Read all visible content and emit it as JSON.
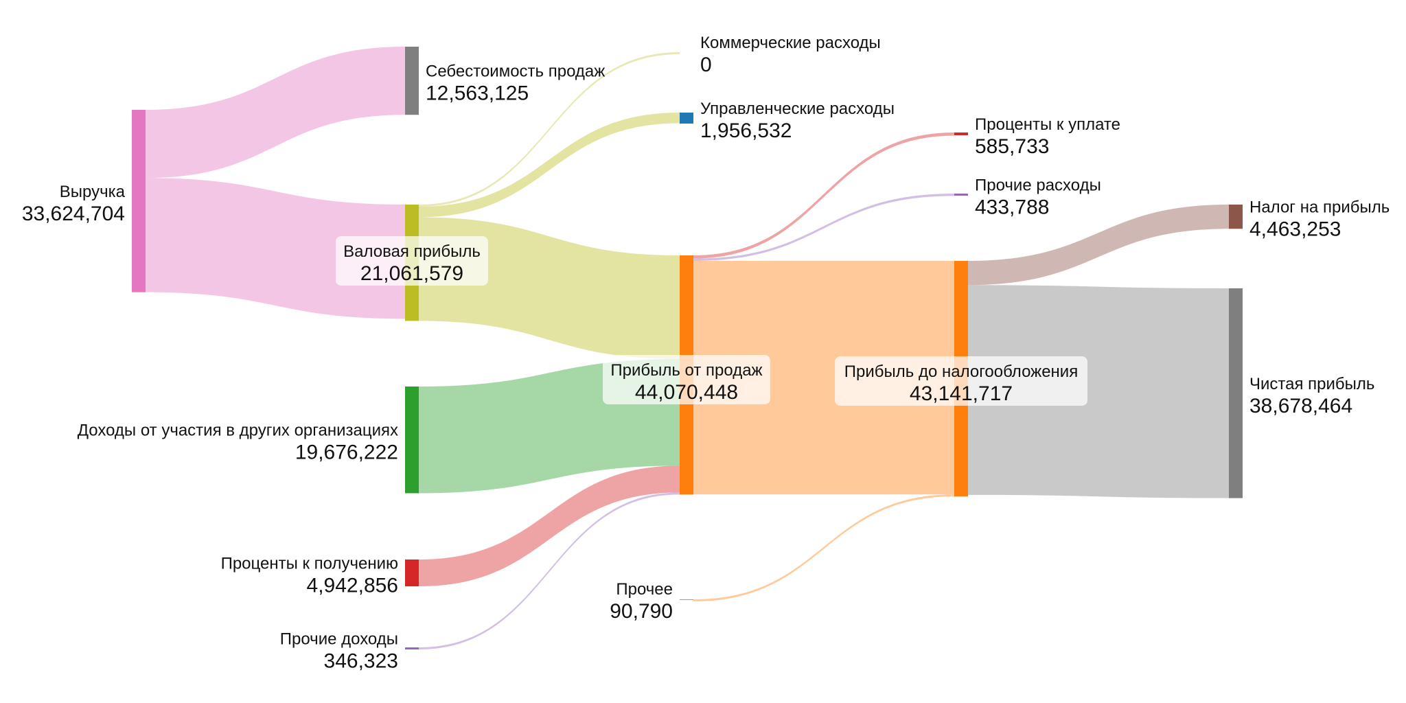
{
  "chart_data": {
    "type": "sankey",
    "nodes": [
      {
        "id": "revenue",
        "name": "Выручка",
        "value": "33,624,704",
        "color": "#e377c2"
      },
      {
        "id": "cogs",
        "name": "Себестоимость продаж",
        "value": "12,563,125",
        "color": "#7f7f7f"
      },
      {
        "id": "gross",
        "name": "Валовая прибыль",
        "value": "21,061,579",
        "color": "#bcbd22"
      },
      {
        "id": "participation",
        "name": "Доходы от участия в других организациях",
        "value": "19,676,222",
        "color": "#2ca02c"
      },
      {
        "id": "int_income",
        "name": "Проценты к получению",
        "value": "4,942,856",
        "color": "#d62728"
      },
      {
        "id": "other_income",
        "name": "Прочие доходы",
        "value": "346,323",
        "color": "#9467bd"
      },
      {
        "id": "commercial",
        "name": "Коммерческие расходы",
        "value": "0",
        "color": "#bcbd22"
      },
      {
        "id": "admin",
        "name": "Управленческие расходы",
        "value": "1,956,532",
        "color": "#1f77b4"
      },
      {
        "id": "sales_profit",
        "name": "Прибыль от продаж",
        "value": "44,070,448",
        "color": "#ff7f0e"
      },
      {
        "id": "other",
        "name": "Прочее",
        "value": "90,790",
        "color": "#ff7f0e"
      },
      {
        "id": "int_expense",
        "name": "Проценты к уплате",
        "value": "585,733",
        "color": "#d62728"
      },
      {
        "id": "other_expense",
        "name": "Прочие расходы",
        "value": "433,788",
        "color": "#9467bd"
      },
      {
        "id": "pretax",
        "name": "Прибыль до налогообложения",
        "value": "43,141,717",
        "color": "#ff7f0e"
      },
      {
        "id": "tax",
        "name": "Налог на прибыль",
        "value": "4,463,253",
        "color": "#8c564b"
      },
      {
        "id": "net",
        "name": "Чистая прибыль",
        "value": "38,678,464",
        "color": "#7f7f7f"
      }
    ],
    "links": [
      {
        "source": "revenue",
        "target": "cogs",
        "value": 12563125,
        "color": "#e377c2"
      },
      {
        "source": "revenue",
        "target": "gross",
        "value": 21061579,
        "color": "#e377c2"
      },
      {
        "source": "gross",
        "target": "commercial",
        "value": 0,
        "color": "#bcbd22"
      },
      {
        "source": "gross",
        "target": "admin",
        "value": 1956532,
        "color": "#bcbd22"
      },
      {
        "source": "gross",
        "target": "sales_profit",
        "value": 19105047,
        "color": "#bcbd22"
      },
      {
        "source": "participation",
        "target": "sales_profit",
        "value": 19676222,
        "color": "#2ca02c"
      },
      {
        "source": "int_income",
        "target": "sales_profit",
        "value": 4942856,
        "color": "#d62728"
      },
      {
        "source": "other_income",
        "target": "sales_profit",
        "value": 346323,
        "color": "#9467bd"
      },
      {
        "source": "sales_profit",
        "target": "int_expense",
        "value": 585733,
        "color": "#d62728"
      },
      {
        "source": "sales_profit",
        "target": "other_expense",
        "value": 433788,
        "color": "#9467bd"
      },
      {
        "source": "sales_profit",
        "target": "pretax",
        "value": 43050928,
        "color": "#ff7f0e"
      },
      {
        "source": "other",
        "target": "pretax",
        "value": 90790,
        "color": "#ff7f0e"
      },
      {
        "source": "pretax",
        "target": "tax",
        "value": 4463253,
        "color": "#8c564b"
      },
      {
        "source": "pretax",
        "target": "net",
        "value": 38678464,
        "color": "#7f7f7f"
      }
    ]
  }
}
